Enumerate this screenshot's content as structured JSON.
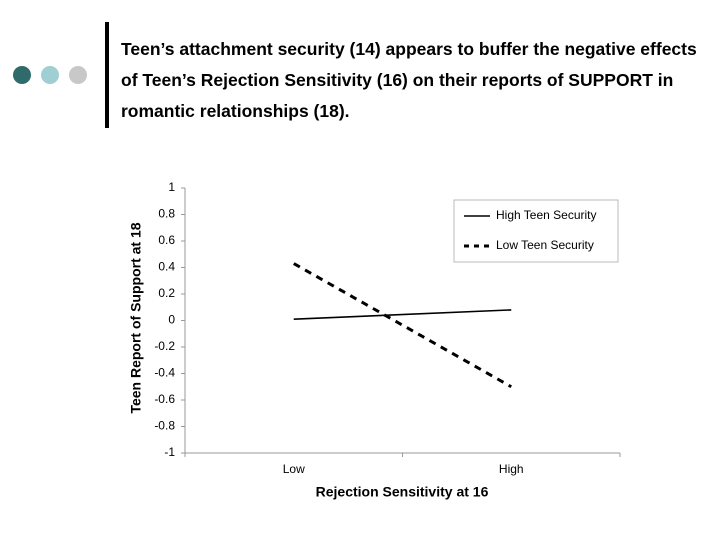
{
  "chart_data": {
    "type": "line",
    "title": "Teen’s attachment security (14) appears to buffer the negative effects of Teen’s Rejection Sensitivity (16) on their reports of SUPPORT in romantic relationships (18).",
    "x_label": "Rejection Sensitivity at 16",
    "y_label": "Teen Report of Support at 18",
    "categories": [
      "Low",
      "High"
    ],
    "series": [
      {
        "name": "High Teen Security",
        "color": "#000000",
        "line_style": "solid",
        "values": [
          0.01,
          0.08
        ]
      },
      {
        "name": "Low Teen Security",
        "color": "#000000",
        "line_style": "dashed",
        "values": [
          0.43,
          -0.5
        ]
      }
    ],
    "ylim": [
      -1,
      1
    ],
    "yticks": [
      -1,
      -0.8,
      -0.6,
      -0.4,
      -0.2,
      0,
      0.2,
      0.4,
      0.6,
      0.8,
      1
    ],
    "legend": "upper right",
    "grid": false
  }
}
